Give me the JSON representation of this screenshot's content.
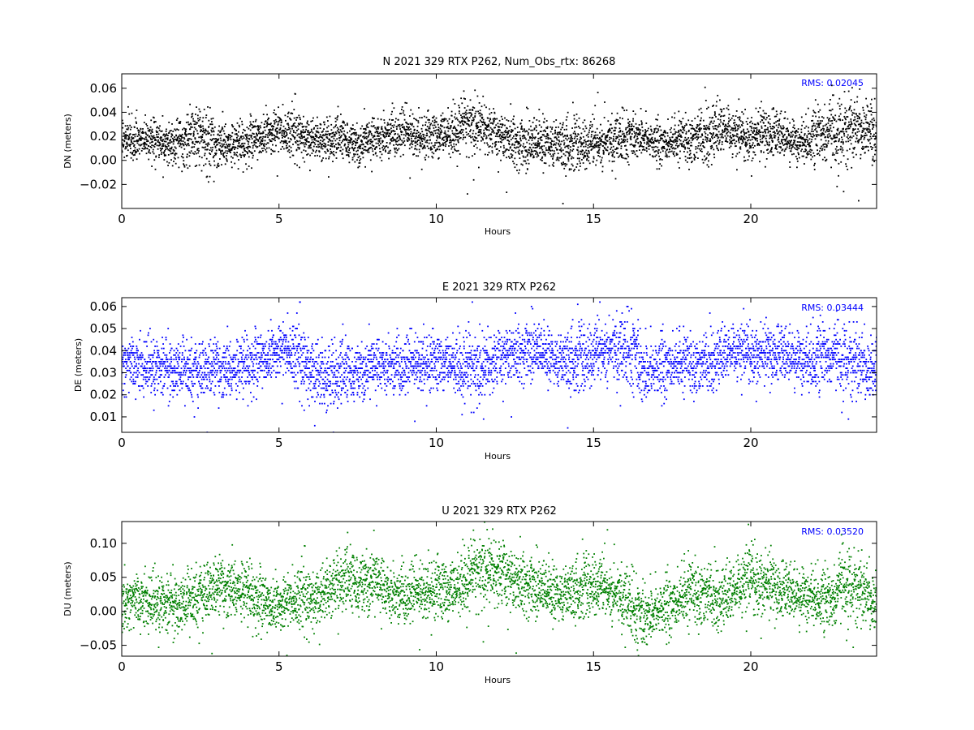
{
  "chart_data": [
    {
      "type": "scatter",
      "title": "N 2021 329 RTX  P262, Num_Obs_rtx: 86268",
      "xlabel": "Hours",
      "ylabel": "DN (meters)",
      "xlim": [
        0,
        24
      ],
      "ylim": [
        -0.04,
        0.072
      ],
      "xticks": [
        0,
        5,
        10,
        15,
        20
      ],
      "yticks": [
        -0.02,
        0.0,
        0.02,
        0.04,
        0.06
      ],
      "ytick_labels": [
        "−0.02",
        "0.00",
        "0.02",
        "0.04",
        "0.06"
      ],
      "rms_label": "RMS:  0.02045",
      "grid": false,
      "series": [
        {
          "color": "#000000",
          "x": [
            0,
            0.5,
            1,
            1.5,
            2,
            2.3,
            2.7,
            3,
            3.5,
            4,
            4.5,
            5,
            5.5,
            6,
            6.5,
            7,
            7.5,
            8,
            8.5,
            9,
            9.5,
            10,
            10.5,
            11,
            11.5,
            12,
            12.5,
            13,
            13.5,
            14,
            14.5,
            15,
            15.5,
            16,
            16.5,
            17,
            17.5,
            18,
            18.5,
            19,
            19.5,
            20,
            20.5,
            21,
            21.5,
            22,
            22.5,
            23,
            23.5,
            24
          ],
          "mean": [
            0.018,
            0.017,
            0.016,
            0.015,
            0.017,
            0.022,
            0.012,
            0.014,
            0.013,
            0.016,
            0.022,
            0.025,
            0.021,
            0.019,
            0.016,
            0.018,
            0.014,
            0.019,
            0.022,
            0.024,
            0.02,
            0.021,
            0.022,
            0.029,
            0.027,
            0.019,
            0.015,
            0.014,
            0.016,
            0.012,
            0.013,
            0.013,
            0.016,
            0.019,
            0.02,
            0.014,
            0.015,
            0.018,
            0.022,
            0.025,
            0.02,
            0.02,
            0.023,
            0.02,
            0.016,
            0.019,
            0.022,
            0.025,
            0.026,
            0.024
          ],
          "spread": [
            0.009,
            0.008,
            0.008,
            0.008,
            0.01,
            0.011,
            0.015,
            0.009,
            0.008,
            0.008,
            0.009,
            0.01,
            0.009,
            0.008,
            0.009,
            0.008,
            0.008,
            0.009,
            0.009,
            0.009,
            0.008,
            0.009,
            0.01,
            0.011,
            0.01,
            0.009,
            0.01,
            0.011,
            0.01,
            0.01,
            0.01,
            0.01,
            0.009,
            0.009,
            0.009,
            0.008,
            0.008,
            0.009,
            0.011,
            0.011,
            0.009,
            0.009,
            0.01,
            0.009,
            0.008,
            0.01,
            0.012,
            0.013,
            0.012,
            0.011
          ]
        }
      ]
    },
    {
      "type": "scatter",
      "title": "E 2021 329 RTX  P262",
      "xlabel": "Hours",
      "ylabel": "DE (meters)",
      "xlim": [
        0,
        24
      ],
      "ylim": [
        0.003,
        0.064
      ],
      "xticks": [
        0,
        5,
        10,
        15,
        20
      ],
      "yticks": [
        0.01,
        0.02,
        0.03,
        0.04,
        0.05,
        0.06
      ],
      "ytick_labels": [
        "0.01",
        "0.02",
        "0.03",
        "0.04",
        "0.05",
        "0.06"
      ],
      "rms_label": "RMS:  0.03444",
      "grid": false,
      "series": [
        {
          "color": "#0000ff",
          "x": [
            0,
            0.5,
            1,
            1.5,
            2,
            2.5,
            3,
            3.5,
            4,
            4.5,
            5,
            5.3,
            5.6,
            6,
            6.5,
            7,
            7.5,
            8,
            8.5,
            9,
            9.5,
            10,
            10.5,
            11,
            11.5,
            12,
            12.5,
            13,
            13.5,
            14,
            14.5,
            15,
            15.5,
            16,
            16.3,
            16.6,
            17,
            17.5,
            18,
            18.5,
            19,
            19.5,
            20,
            20.5,
            21,
            21.5,
            22,
            22.5,
            23,
            23.5,
            24
          ],
          "mean": [
            0.035,
            0.034,
            0.033,
            0.032,
            0.031,
            0.031,
            0.032,
            0.032,
            0.034,
            0.037,
            0.04,
            0.041,
            0.036,
            0.032,
            0.028,
            0.029,
            0.031,
            0.034,
            0.034,
            0.033,
            0.035,
            0.035,
            0.034,
            0.03,
            0.032,
            0.036,
            0.038,
            0.041,
            0.038,
            0.035,
            0.036,
            0.038,
            0.041,
            0.04,
            0.039,
            0.03,
            0.032,
            0.034,
            0.034,
            0.035,
            0.037,
            0.038,
            0.039,
            0.038,
            0.038,
            0.037,
            0.036,
            0.037,
            0.037,
            0.033,
            0.03
          ],
          "spread": [
            0.007,
            0.006,
            0.006,
            0.006,
            0.006,
            0.006,
            0.006,
            0.006,
            0.006,
            0.006,
            0.006,
            0.007,
            0.007,
            0.007,
            0.008,
            0.007,
            0.006,
            0.006,
            0.006,
            0.006,
            0.006,
            0.006,
            0.006,
            0.008,
            0.007,
            0.006,
            0.006,
            0.007,
            0.006,
            0.006,
            0.007,
            0.007,
            0.007,
            0.007,
            0.008,
            0.008,
            0.007,
            0.006,
            0.006,
            0.006,
            0.006,
            0.006,
            0.006,
            0.006,
            0.006,
            0.006,
            0.007,
            0.006,
            0.007,
            0.007,
            0.007
          ]
        }
      ]
    },
    {
      "type": "scatter",
      "title": "U 2021 329 RTX  P262",
      "xlabel": "Hours",
      "ylabel": "DU (meters)",
      "xlim": [
        0,
        24
      ],
      "ylim": [
        -0.066,
        0.132
      ],
      "xticks": [
        0,
        5,
        10,
        15,
        20
      ],
      "yticks": [
        -0.05,
        0.0,
        0.05,
        0.1
      ],
      "ytick_labels": [
        "−0.05",
        "0.00",
        "0.05",
        "0.10"
      ],
      "rms_label": "RMS:  0.03520",
      "grid": false,
      "series": [
        {
          "color": "#008000",
          "x": [
            0,
            0.5,
            1,
            1.5,
            2,
            2.5,
            3,
            3.5,
            4,
            4.5,
            5,
            5.5,
            6,
            6.5,
            7,
            7.5,
            8,
            8.5,
            9,
            9.5,
            10,
            10.5,
            11,
            11.5,
            12,
            12.5,
            13,
            13.5,
            14,
            14.5,
            15,
            15.5,
            16,
            16.5,
            17,
            17.5,
            18,
            18.5,
            19,
            19.5,
            20,
            20.5,
            21,
            21.5,
            22,
            22.5,
            23,
            23.5,
            24
          ],
          "mean": [
            0.02,
            0.018,
            0.015,
            0.01,
            0.01,
            0.025,
            0.035,
            0.035,
            0.03,
            0.015,
            0.01,
            0.02,
            0.015,
            0.03,
            0.045,
            0.04,
            0.05,
            0.03,
            0.025,
            0.03,
            0.035,
            0.03,
            0.045,
            0.06,
            0.055,
            0.04,
            0.04,
            0.03,
            0.025,
            0.03,
            0.04,
            0.03,
            0.02,
            -0.01,
            0.0,
            0.01,
            0.025,
            0.03,
            0.02,
            0.025,
            0.05,
            0.04,
            0.03,
            0.025,
            0.025,
            0.01,
            0.045,
            0.03,
            0.01
          ],
          "spread": [
            0.02,
            0.02,
            0.02,
            0.02,
            0.02,
            0.02,
            0.02,
            0.02,
            0.02,
            0.02,
            0.02,
            0.022,
            0.02,
            0.022,
            0.022,
            0.022,
            0.022,
            0.02,
            0.02,
            0.02,
            0.02,
            0.022,
            0.024,
            0.025,
            0.024,
            0.022,
            0.022,
            0.022,
            0.02,
            0.02,
            0.022,
            0.02,
            0.02,
            0.024,
            0.022,
            0.02,
            0.022,
            0.022,
            0.02,
            0.022,
            0.024,
            0.022,
            0.02,
            0.02,
            0.02,
            0.02,
            0.024,
            0.022,
            0.022
          ]
        }
      ]
    }
  ]
}
